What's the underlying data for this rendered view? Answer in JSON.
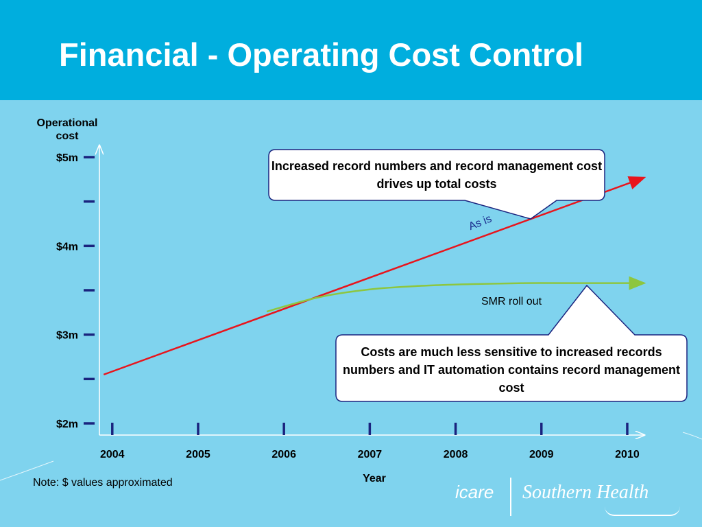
{
  "header": {
    "title": "Financial - Operating Cost Control"
  },
  "chart_data": {
    "type": "line",
    "ylabel": "Operational cost",
    "xlabel": "Year",
    "x_ticks": [
      "2004",
      "2005",
      "2006",
      "2007",
      "2008",
      "2009",
      "2010"
    ],
    "y_ticks": [
      {
        "value": 2.0,
        "label": "$2m"
      },
      {
        "value": 2.5,
        "label": ""
      },
      {
        "value": 3.0,
        "label": "$3m"
      },
      {
        "value": 3.5,
        "label": ""
      },
      {
        "value": 4.0,
        "label": "$4m"
      },
      {
        "value": 4.5,
        "label": ""
      },
      {
        "value": 5.0,
        "label": "$5m"
      }
    ],
    "ylim": [
      2.0,
      5.0
    ],
    "xlim": [
      2003.85,
      2010.2
    ],
    "series": [
      {
        "name": "As is",
        "color": "#e8141c",
        "x": [
          2003.9,
          2010.2
        ],
        "y": [
          2.55,
          4.77
        ]
      },
      {
        "name": "SMR roll out",
        "color": "#8dc63f",
        "x": [
          2005.8,
          2006.4,
          2007.0,
          2007.6,
          2008.2,
          2008.8,
          2009.4,
          2010.2
        ],
        "y": [
          3.26,
          3.42,
          3.51,
          3.55,
          3.57,
          3.58,
          3.58,
          3.58
        ]
      }
    ],
    "annotations": [
      "Increased record numbers and record management cost drives up total costs",
      "Costs are much less sensitive to increased records numbers and IT automation contains record management cost"
    ],
    "note": "Note: $ values approximated"
  },
  "logo": {
    "icare": "icare",
    "org": "Southern Health"
  },
  "colors": {
    "header": "#00aede",
    "background": "#7fd3ee",
    "as_is": "#e8141c",
    "smr": "#8dc63f",
    "ticks": "#1a237e"
  }
}
